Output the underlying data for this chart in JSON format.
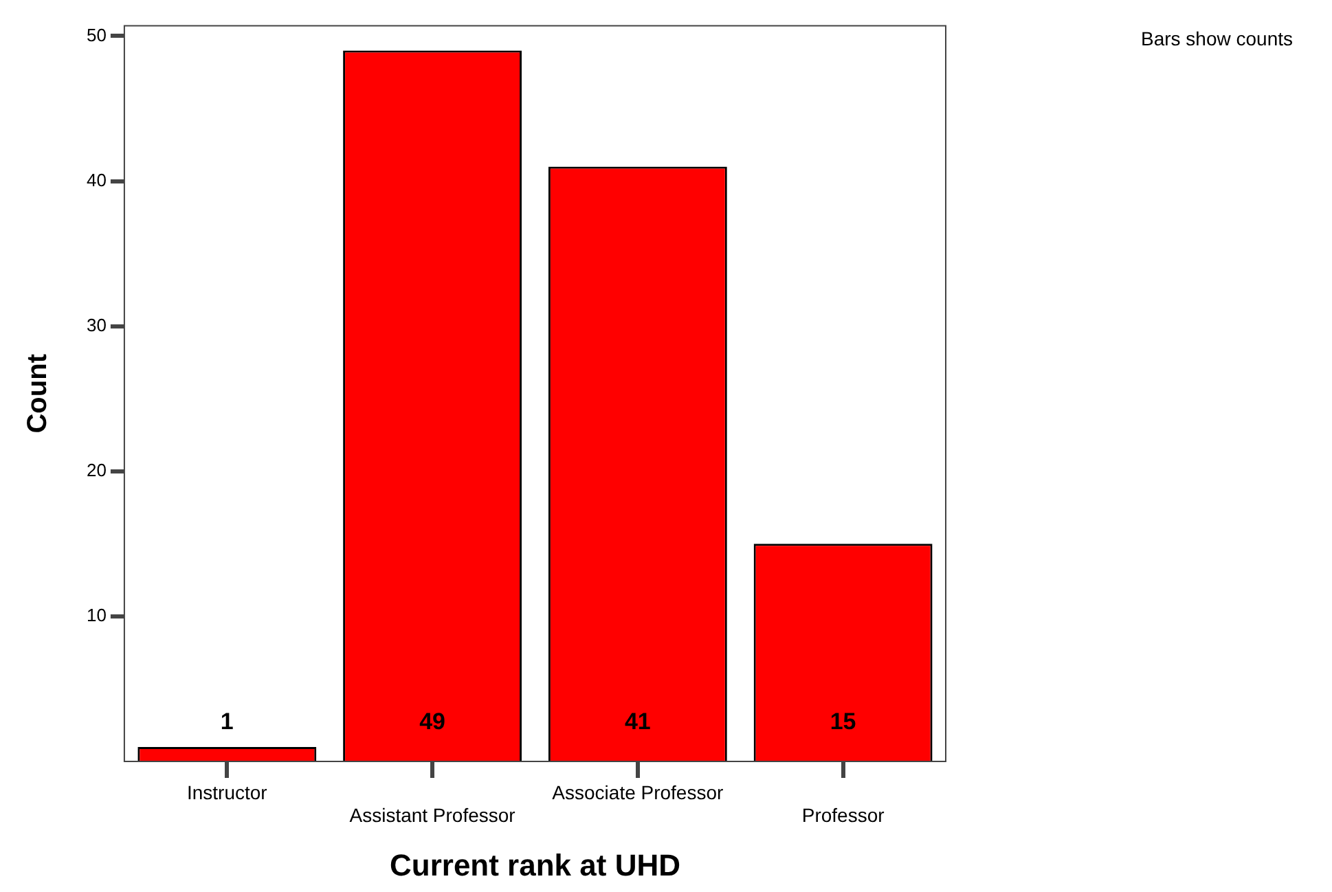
{
  "chart_data": {
    "type": "bar",
    "xlabel": "Current rank at UHD",
    "ylabel": "Count",
    "categories": [
      "Instructor",
      "Assistant Professor",
      "Associate Professor",
      "Professor"
    ],
    "values": [
      1,
      49,
      41,
      15
    ],
    "color": "#ff0000",
    "ylim": [
      0,
      50.7
    ],
    "yticks": [
      10,
      20,
      30,
      40,
      50
    ],
    "grid": false,
    "legend": false,
    "data_labels": true,
    "annotations": [
      "Bars show counts"
    ]
  }
}
